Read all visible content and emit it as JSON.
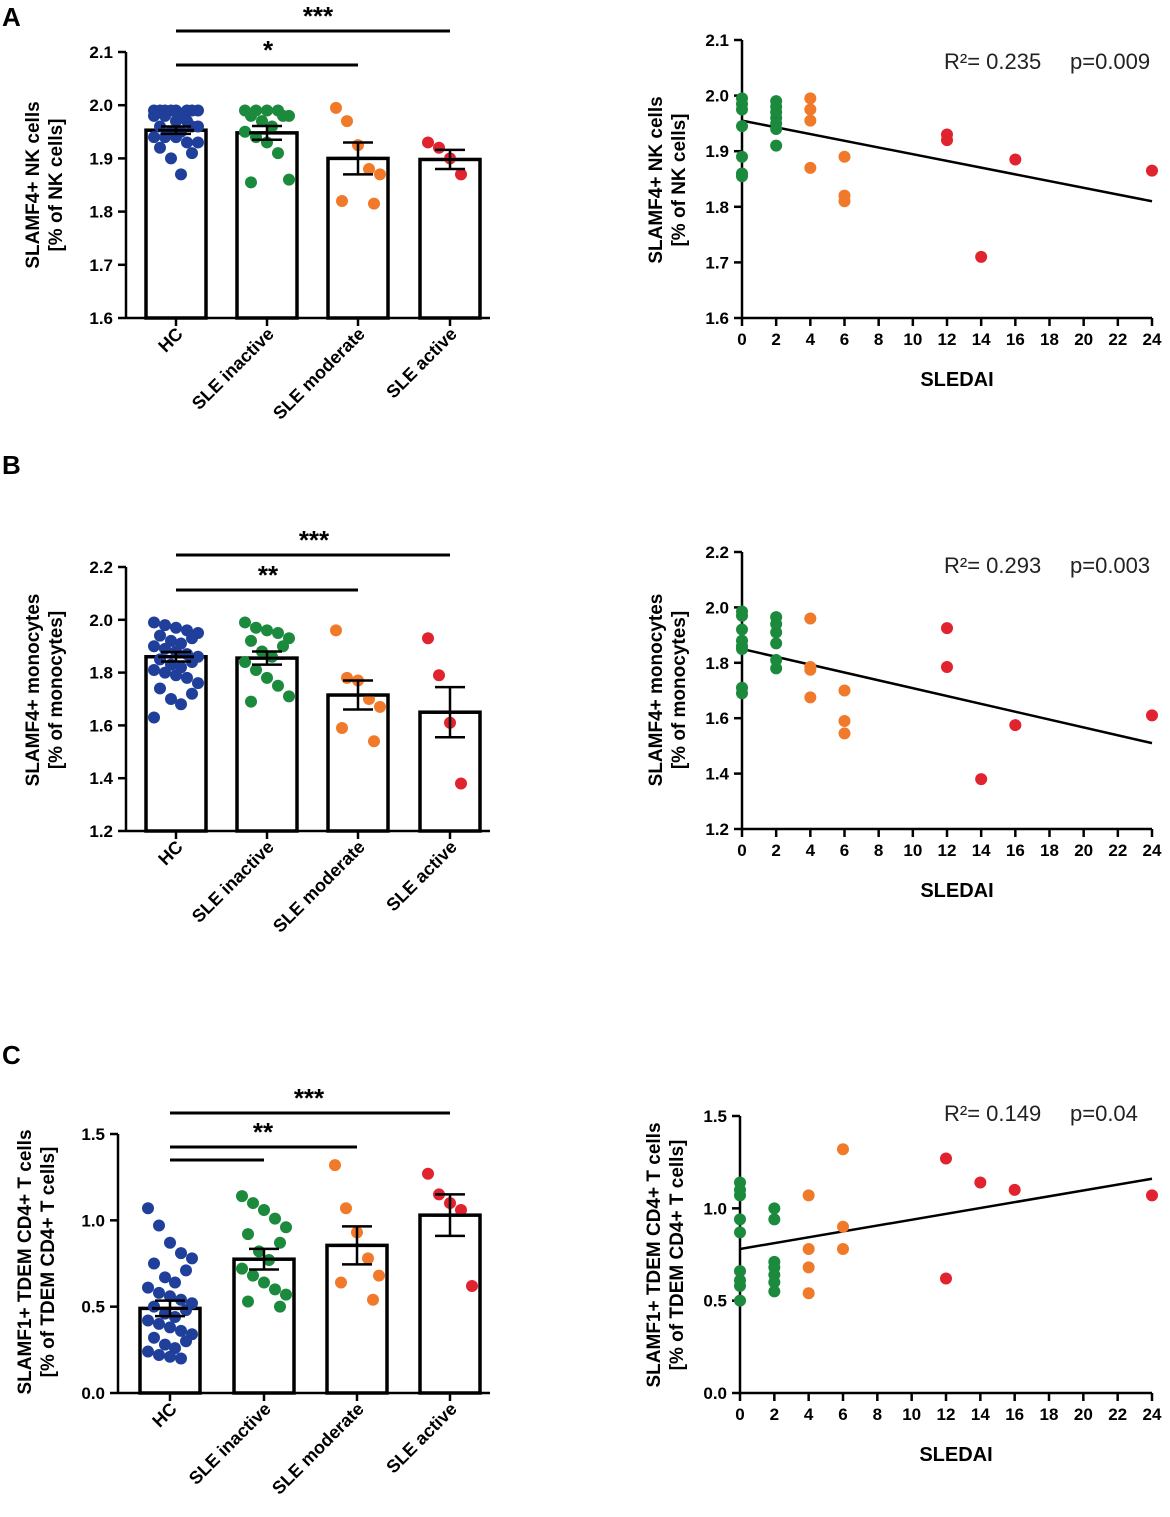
{
  "figure": {
    "panels": [
      {
        "id": "A",
        "letter": "A"
      },
      {
        "id": "B",
        "letter": "B"
      },
      {
        "id": "C",
        "letter": "C"
      }
    ]
  },
  "colors": {
    "HC": "#1f3f9a",
    "SLE inactive": "#1b8a3c",
    "SLE moderate": "#f07a2a",
    "SLE active": "#e0232e",
    "axis": "#000000"
  },
  "chart_data": [
    {
      "panel": "A",
      "side": "left",
      "type": "bar",
      "ylabel": [
        "SLAMF4+ NK cells",
        "[% of NK cells]"
      ],
      "ylim": [
        1.6,
        2.1
      ],
      "yticks": [
        1.6,
        1.7,
        1.8,
        1.9,
        2.0,
        2.1
      ],
      "ytick_labels": [
        "1.6",
        "1.7",
        "1.8",
        "1.9",
        "2.0",
        "2.1"
      ],
      "categories": [
        "HC",
        "SLE inactive",
        "SLE moderate",
        "SLE active"
      ],
      "means": [
        1.953,
        1.948,
        1.9,
        1.898
      ],
      "sem": [
        0.007,
        0.013,
        0.03,
        0.018
      ],
      "points": [
        [
          1.99,
          1.99,
          1.99,
          1.99,
          1.99,
          1.99,
          1.99,
          1.99,
          1.98,
          1.98,
          1.98,
          1.97,
          1.97,
          1.96,
          1.96,
          1.96,
          1.95,
          1.95,
          1.94,
          1.94,
          1.94,
          1.93,
          1.93,
          1.92,
          1.91,
          1.9,
          1.87
        ],
        [
          1.99,
          1.99,
          1.99,
          1.99,
          1.98,
          1.98,
          1.98,
          1.97,
          1.96,
          1.95,
          1.94,
          1.93,
          1.91,
          1.86,
          1.855
        ],
        [
          1.995,
          1.97,
          1.925,
          1.88,
          1.87,
          1.82,
          1.815
        ],
        [
          1.93,
          1.92,
          1.9,
          1.87
        ]
      ],
      "significance": [
        {
          "from": 0,
          "to": 3,
          "label": "***"
        },
        {
          "from": 0,
          "to": 2,
          "label": "*"
        }
      ]
    },
    {
      "panel": "A",
      "side": "right",
      "type": "scatter",
      "ylabel": [
        "SLAMF4+ NK cells",
        "[% of NK cells]"
      ],
      "xlabel": "SLEDAI",
      "ylim": [
        1.6,
        2.1
      ],
      "yticks": [
        1.6,
        1.7,
        1.8,
        1.9,
        2.0,
        2.1
      ],
      "ytick_labels": [
        "1.6",
        "1.7",
        "1.8",
        "1.9",
        "2.0",
        "2.1"
      ],
      "xlim": [
        0,
        24
      ],
      "xticks": [
        0,
        2,
        4,
        6,
        8,
        10,
        12,
        14,
        16,
        18,
        20,
        22,
        24
      ],
      "xtick_labels": [
        "0",
        "2",
        "4",
        "6",
        "8",
        "10",
        "12",
        "14",
        "16",
        "18",
        "20",
        "22",
        "24"
      ],
      "annotation": {
        "r2_text": "R²= 0.235",
        "p_text": "p=0.009"
      },
      "regression": {
        "x0": 0,
        "y0": 1.955,
        "x1": 24,
        "y1": 1.81
      },
      "points": [
        {
          "x": 0,
          "y": 1.995,
          "group": "SLE inactive"
        },
        {
          "x": 0,
          "y": 1.985,
          "group": "SLE inactive"
        },
        {
          "x": 0,
          "y": 1.975,
          "group": "SLE inactive"
        },
        {
          "x": 0,
          "y": 1.945,
          "group": "SLE inactive"
        },
        {
          "x": 0,
          "y": 1.89,
          "group": "SLE inactive"
        },
        {
          "x": 0,
          "y": 1.86,
          "group": "SLE inactive"
        },
        {
          "x": 0,
          "y": 1.855,
          "group": "SLE inactive"
        },
        {
          "x": 2,
          "y": 1.99,
          "group": "SLE inactive"
        },
        {
          "x": 2,
          "y": 1.98,
          "group": "SLE inactive"
        },
        {
          "x": 2,
          "y": 1.97,
          "group": "SLE inactive"
        },
        {
          "x": 2,
          "y": 1.96,
          "group": "SLE inactive"
        },
        {
          "x": 2,
          "y": 1.95,
          "group": "SLE inactive"
        },
        {
          "x": 2,
          "y": 1.94,
          "group": "SLE inactive"
        },
        {
          "x": 2,
          "y": 1.91,
          "group": "SLE inactive"
        },
        {
          "x": 4,
          "y": 1.995,
          "group": "SLE moderate"
        },
        {
          "x": 4,
          "y": 1.975,
          "group": "SLE moderate"
        },
        {
          "x": 4,
          "y": 1.955,
          "group": "SLE moderate"
        },
        {
          "x": 4,
          "y": 1.87,
          "group": "SLE moderate"
        },
        {
          "x": 6,
          "y": 1.89,
          "group": "SLE moderate"
        },
        {
          "x": 6,
          "y": 1.82,
          "group": "SLE moderate"
        },
        {
          "x": 6,
          "y": 1.81,
          "group": "SLE moderate"
        },
        {
          "x": 12,
          "y": 1.93,
          "group": "SLE active"
        },
        {
          "x": 12,
          "y": 1.92,
          "group": "SLE active"
        },
        {
          "x": 14,
          "y": 1.71,
          "group": "SLE active"
        },
        {
          "x": 16,
          "y": 1.885,
          "group": "SLE active"
        },
        {
          "x": 24,
          "y": 1.865,
          "group": "SLE active"
        }
      ]
    },
    {
      "panel": "B",
      "side": "left",
      "type": "bar",
      "ylabel": [
        "SLAMF4+ monocytes",
        "[% of monocytes]"
      ],
      "ylim": [
        1.2,
        2.2
      ],
      "yticks": [
        1.2,
        1.4,
        1.6,
        1.8,
        2.0,
        2.2
      ],
      "ytick_labels": [
        "1.2",
        "1.4",
        "1.6",
        "1.8",
        "2.0",
        "2.2"
      ],
      "categories": [
        "HC",
        "SLE inactive",
        "SLE moderate",
        "SLE active"
      ],
      "means": [
        1.86,
        1.855,
        1.715,
        1.65
      ],
      "sem": [
        0.018,
        0.025,
        0.055,
        0.095
      ],
      "points": [
        [
          1.99,
          1.98,
          1.97,
          1.96,
          1.95,
          1.94,
          1.93,
          1.92,
          1.91,
          1.9,
          1.89,
          1.88,
          1.87,
          1.86,
          1.85,
          1.84,
          1.83,
          1.82,
          1.81,
          1.8,
          1.79,
          1.78,
          1.76,
          1.74,
          1.72,
          1.7,
          1.68,
          1.63
        ],
        [
          1.99,
          1.97,
          1.96,
          1.95,
          1.93,
          1.92,
          1.9,
          1.88,
          1.86,
          1.84,
          1.81,
          1.78,
          1.75,
          1.71,
          1.69
        ],
        [
          1.96,
          1.78,
          1.77,
          1.7,
          1.67,
          1.59,
          1.54
        ],
        [
          1.93,
          1.79,
          1.61,
          1.38
        ]
      ],
      "significance": [
        {
          "from": 0,
          "to": 3,
          "label": "***"
        },
        {
          "from": 0,
          "to": 2,
          "label": "**"
        }
      ]
    },
    {
      "panel": "B",
      "side": "right",
      "type": "scatter",
      "ylabel": [
        "SLAMF4+ monocytes",
        "[% of monocytes]"
      ],
      "xlabel": "SLEDAI",
      "ylim": [
        1.2,
        2.2
      ],
      "yticks": [
        1.2,
        1.4,
        1.6,
        1.8,
        2.0,
        2.2
      ],
      "ytick_labels": [
        "1.2",
        "1.4",
        "1.6",
        "1.8",
        "2.0",
        "2.2"
      ],
      "xlim": [
        0,
        24
      ],
      "xticks": [
        0,
        2,
        4,
        6,
        8,
        10,
        12,
        14,
        16,
        18,
        20,
        22,
        24
      ],
      "xtick_labels": [
        "0",
        "2",
        "4",
        "6",
        "8",
        "10",
        "12",
        "14",
        "16",
        "18",
        "20",
        "22",
        "24"
      ],
      "annotation": {
        "r2_text": "R²= 0.293",
        "p_text": "p=0.003"
      },
      "regression": {
        "x0": 0,
        "y0": 1.85,
        "x1": 24,
        "y1": 1.51
      },
      "points": [
        {
          "x": 0,
          "y": 1.985,
          "group": "SLE inactive"
        },
        {
          "x": 0,
          "y": 1.97,
          "group": "SLE inactive"
        },
        {
          "x": 0,
          "y": 1.92,
          "group": "SLE inactive"
        },
        {
          "x": 0,
          "y": 1.88,
          "group": "SLE inactive"
        },
        {
          "x": 0,
          "y": 1.86,
          "group": "SLE inactive"
        },
        {
          "x": 0,
          "y": 1.85,
          "group": "SLE inactive"
        },
        {
          "x": 0,
          "y": 1.71,
          "group": "SLE inactive"
        },
        {
          "x": 0,
          "y": 1.69,
          "group": "SLE inactive"
        },
        {
          "x": 2,
          "y": 1.965,
          "group": "SLE inactive"
        },
        {
          "x": 2,
          "y": 1.94,
          "group": "SLE inactive"
        },
        {
          "x": 2,
          "y": 1.91,
          "group": "SLE inactive"
        },
        {
          "x": 2,
          "y": 1.87,
          "group": "SLE inactive"
        },
        {
          "x": 2,
          "y": 1.81,
          "group": "SLE inactive"
        },
        {
          "x": 2,
          "y": 1.78,
          "group": "SLE inactive"
        },
        {
          "x": 4,
          "y": 1.96,
          "group": "SLE moderate"
        },
        {
          "x": 4,
          "y": 1.785,
          "group": "SLE moderate"
        },
        {
          "x": 4,
          "y": 1.775,
          "group": "SLE moderate"
        },
        {
          "x": 4,
          "y": 1.675,
          "group": "SLE moderate"
        },
        {
          "x": 6,
          "y": 1.7,
          "group": "SLE moderate"
        },
        {
          "x": 6,
          "y": 1.59,
          "group": "SLE moderate"
        },
        {
          "x": 6,
          "y": 1.545,
          "group": "SLE moderate"
        },
        {
          "x": 12,
          "y": 1.925,
          "group": "SLE active"
        },
        {
          "x": 12,
          "y": 1.785,
          "group": "SLE active"
        },
        {
          "x": 14,
          "y": 1.38,
          "group": "SLE active"
        },
        {
          "x": 16,
          "y": 1.575,
          "group": "SLE active"
        },
        {
          "x": 24,
          "y": 1.61,
          "group": "SLE active"
        }
      ]
    },
    {
      "panel": "C",
      "side": "left",
      "type": "bar",
      "ylabel": [
        "SLAMF1+ TDEM CD4+ T cells",
        "[% of TDEM CD4+ T cells]"
      ],
      "ylim": [
        0.0,
        1.5
      ],
      "yticks": [
        0.0,
        0.5,
        1.0,
        1.5
      ],
      "ytick_labels": [
        "0.0",
        "0.5",
        "1.0",
        "1.5"
      ],
      "categories": [
        "HC",
        "SLE inactive",
        "SLE moderate",
        "SLE active"
      ],
      "means": [
        0.49,
        0.775,
        0.855,
        1.03
      ],
      "sem": [
        0.045,
        0.06,
        0.11,
        0.12
      ],
      "points": [
        [
          1.07,
          0.97,
          0.87,
          0.81,
          0.78,
          0.75,
          0.71,
          0.67,
          0.64,
          0.61,
          0.58,
          0.56,
          0.54,
          0.52,
          0.5,
          0.48,
          0.46,
          0.44,
          0.42,
          0.4,
          0.38,
          0.36,
          0.34,
          0.32,
          0.3,
          0.28,
          0.26,
          0.24,
          0.22,
          0.21,
          0.2
        ],
        [
          1.14,
          1.1,
          1.06,
          1.01,
          0.96,
          0.92,
          0.87,
          0.82,
          0.77,
          0.72,
          0.68,
          0.64,
          0.6,
          0.57,
          0.53,
          0.5
        ],
        [
          1.32,
          1.07,
          0.93,
          0.78,
          0.68,
          0.64,
          0.54
        ],
        [
          1.27,
          1.15,
          1.1,
          1.06,
          0.62
        ]
      ],
      "significance": [
        {
          "from": 0,
          "to": 3,
          "label": "***"
        },
        {
          "from": 0,
          "to": 2,
          "label": "**"
        },
        {
          "from": 0,
          "to": 1,
          "label": ""
        }
      ]
    },
    {
      "panel": "C",
      "side": "right",
      "type": "scatter",
      "ylabel": [
        "SLAMF1+ TDEM CD4+ T cells",
        "[% of TDEM CD4+ T cells]"
      ],
      "xlabel": "SLEDAI",
      "ylim": [
        0.0,
        1.5
      ],
      "yticks": [
        0.0,
        0.5,
        1.0,
        1.5
      ],
      "ytick_labels": [
        "0.0",
        "0.5",
        "1.0",
        "1.5"
      ],
      "xlim": [
        0,
        24
      ],
      "xticks": [
        0,
        2,
        4,
        6,
        8,
        10,
        12,
        14,
        16,
        18,
        20,
        22,
        24
      ],
      "xtick_labels": [
        "0",
        "2",
        "4",
        "6",
        "8",
        "10",
        "12",
        "14",
        "16",
        "18",
        "20",
        "22",
        "24"
      ],
      "annotation": {
        "r2_text": "R²= 0.149",
        "p_text": "p=0.04"
      },
      "regression": {
        "x0": 0,
        "y0": 0.78,
        "x1": 24,
        "y1": 1.16
      },
      "points": [
        {
          "x": 0,
          "y": 1.14,
          "group": "SLE inactive"
        },
        {
          "x": 0,
          "y": 1.1,
          "group": "SLE inactive"
        },
        {
          "x": 0,
          "y": 1.07,
          "group": "SLE inactive"
        },
        {
          "x": 0,
          "y": 0.94,
          "group": "SLE inactive"
        },
        {
          "x": 0,
          "y": 0.87,
          "group": "SLE inactive"
        },
        {
          "x": 0,
          "y": 0.66,
          "group": "SLE inactive"
        },
        {
          "x": 0,
          "y": 0.61,
          "group": "SLE inactive"
        },
        {
          "x": 0,
          "y": 0.58,
          "group": "SLE inactive"
        },
        {
          "x": 0,
          "y": 0.5,
          "group": "SLE inactive"
        },
        {
          "x": 2,
          "y": 1.0,
          "group": "SLE inactive"
        },
        {
          "x": 2,
          "y": 0.94,
          "group": "SLE inactive"
        },
        {
          "x": 2,
          "y": 0.71,
          "group": "SLE inactive"
        },
        {
          "x": 2,
          "y": 0.68,
          "group": "SLE inactive"
        },
        {
          "x": 2,
          "y": 0.64,
          "group": "SLE inactive"
        },
        {
          "x": 2,
          "y": 0.6,
          "group": "SLE inactive"
        },
        {
          "x": 2,
          "y": 0.55,
          "group": "SLE inactive"
        },
        {
          "x": 4,
          "y": 1.07,
          "group": "SLE moderate"
        },
        {
          "x": 4,
          "y": 0.78,
          "group": "SLE moderate"
        },
        {
          "x": 4,
          "y": 0.68,
          "group": "SLE moderate"
        },
        {
          "x": 4,
          "y": 0.54,
          "group": "SLE moderate"
        },
        {
          "x": 6,
          "y": 1.32,
          "group": "SLE moderate"
        },
        {
          "x": 6,
          "y": 0.9,
          "group": "SLE moderate"
        },
        {
          "x": 6,
          "y": 0.78,
          "group": "SLE moderate"
        },
        {
          "x": 12,
          "y": 1.27,
          "group": "SLE active"
        },
        {
          "x": 12,
          "y": 0.62,
          "group": "SLE active"
        },
        {
          "x": 14,
          "y": 1.14,
          "group": "SLE active"
        },
        {
          "x": 16,
          "y": 1.1,
          "group": "SLE active"
        },
        {
          "x": 24,
          "y": 1.07,
          "group": "SLE active"
        }
      ]
    }
  ]
}
